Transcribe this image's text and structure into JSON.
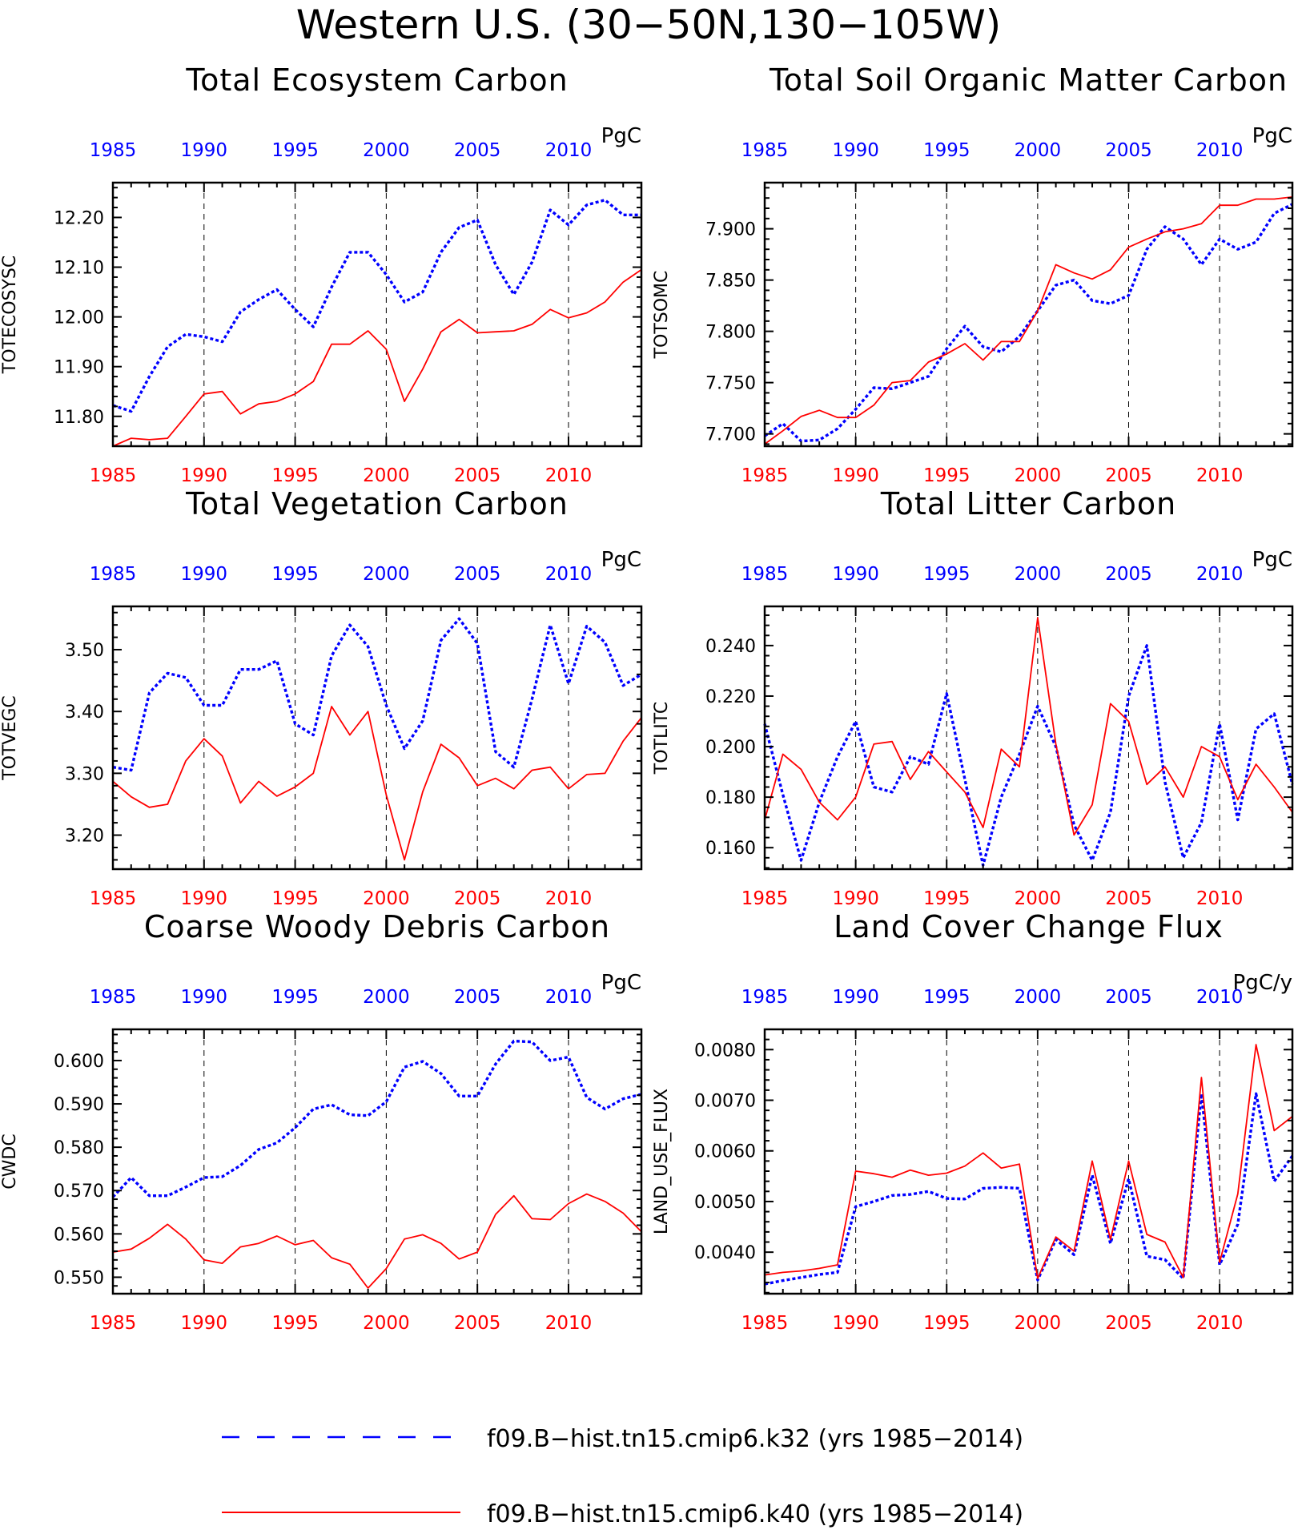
{
  "figure": {
    "title": "Western U.S. (30−50N,130−105W)",
    "legend": [
      {
        "label": "f09.B−hist.tn15.cmip6.k32 (yrs 1985−2014)",
        "color": "#0000ff",
        "style": "dashed"
      },
      {
        "label": "f09.B−hist.tn15.cmip6.k40 (yrs 1985−2014)",
        "color": "#ff0000",
        "style": "solid"
      }
    ]
  },
  "chart_data": [
    {
      "type": "line",
      "title": "Total Ecosystem Carbon",
      "ylabel": "TOTECOSYSC",
      "units": "PgC",
      "xlim": [
        1985,
        2014
      ],
      "ylim": [
        11.74,
        12.27
      ],
      "yticks": [
        11.8,
        11.9,
        12.0,
        12.1,
        12.2
      ],
      "ytick_labels": [
        "11.80",
        "11.90",
        "12.00",
        "12.10",
        "12.20"
      ],
      "xticks": [
        1985,
        1990,
        1995,
        2000,
        2005,
        2010
      ],
      "xtick_labels": [
        "1985",
        "1990",
        "1995",
        "2000",
        "2005",
        "2010"
      ],
      "grid": "vertical dashed at tick years",
      "x": [
        1985,
        1986,
        1987,
        1988,
        1989,
        1990,
        1991,
        1992,
        1993,
        1994,
        1995,
        1996,
        1997,
        1998,
        1999,
        2000,
        2001,
        2002,
        2003,
        2004,
        2005,
        2006,
        2007,
        2008,
        2009,
        2010,
        2011,
        2012,
        2013,
        2014
      ],
      "series": [
        {
          "color": "#0000ff",
          "dash": "dotted",
          "values": [
            11.822,
            11.81,
            11.88,
            11.94,
            11.965,
            11.96,
            11.95,
            12.01,
            12.035,
            12.055,
            12.015,
            11.98,
            12.06,
            12.13,
            12.13,
            12.085,
            12.03,
            12.05,
            12.13,
            12.18,
            12.195,
            12.105,
            12.045,
            12.11,
            12.215,
            12.185,
            12.225,
            12.235,
            12.205,
            12.205
          ]
        },
        {
          "color": "#ff0000",
          "dash": "solid",
          "values": [
            11.74,
            11.756,
            11.753,
            11.756,
            11.8,
            11.845,
            11.85,
            11.805,
            11.825,
            11.83,
            11.845,
            11.87,
            11.945,
            11.945,
            11.972,
            11.935,
            11.83,
            11.895,
            11.97,
            11.995,
            11.968,
            11.97,
            11.972,
            11.985,
            12.015,
            11.998,
            12.008,
            12.03,
            12.07,
            12.095
          ]
        }
      ]
    },
    {
      "type": "line",
      "title": "Total Soil Organic Matter Carbon",
      "ylabel": "TOTSOMC",
      "units": "PgC",
      "xlim": [
        1985,
        2014
      ],
      "ylim": [
        7.688,
        7.945
      ],
      "yticks": [
        7.7,
        7.75,
        7.8,
        7.85,
        7.9
      ],
      "ytick_labels": [
        "7.700",
        "7.750",
        "7.800",
        "7.850",
        "7.900"
      ],
      "xticks": [
        1985,
        1990,
        1995,
        2000,
        2005,
        2010
      ],
      "xtick_labels": [
        "1985",
        "1990",
        "1995",
        "2000",
        "2005",
        "2010"
      ],
      "grid": "vertical dashed at tick years",
      "x": [
        1985,
        1986,
        1987,
        1988,
        1989,
        1990,
        1991,
        1992,
        1993,
        1994,
        1995,
        1996,
        1997,
        1998,
        1999,
        2000,
        2001,
        2002,
        2003,
        2004,
        2005,
        2006,
        2007,
        2008,
        2009,
        2010,
        2011,
        2012,
        2013,
        2014
      ],
      "series": [
        {
          "color": "#0000ff",
          "dash": "dotted",
          "values": [
            7.698,
            7.71,
            7.693,
            7.694,
            7.705,
            7.724,
            7.745,
            7.744,
            7.75,
            7.756,
            7.783,
            7.805,
            7.785,
            7.78,
            7.795,
            7.82,
            7.845,
            7.85,
            7.83,
            7.827,
            7.835,
            7.88,
            7.902,
            7.89,
            7.865,
            7.89,
            7.88,
            7.887,
            7.915,
            7.924
          ]
        },
        {
          "color": "#ff0000",
          "dash": "solid",
          "values": [
            7.69,
            7.703,
            7.717,
            7.723,
            7.716,
            7.716,
            7.728,
            7.75,
            7.752,
            7.77,
            7.778,
            7.788,
            7.772,
            7.79,
            7.79,
            7.82,
            7.865,
            7.857,
            7.851,
            7.86,
            7.882,
            7.89,
            7.897,
            7.9,
            7.905,
            7.923,
            7.923,
            7.929,
            7.929,
            7.931
          ]
        }
      ]
    },
    {
      "type": "line",
      "title": "Total Vegetation Carbon",
      "ylabel": "TOTVEGC",
      "units": "PgC",
      "xlim": [
        1985,
        2014
      ],
      "ylim": [
        3.145,
        3.57
      ],
      "yticks": [
        3.2,
        3.3,
        3.4,
        3.5
      ],
      "ytick_labels": [
        "3.20",
        "3.30",
        "3.40",
        "3.50"
      ],
      "xticks": [
        1985,
        1990,
        1995,
        2000,
        2005,
        2010
      ],
      "xtick_labels": [
        "1985",
        "1990",
        "1995",
        "2000",
        "2005",
        "2010"
      ],
      "grid": "vertical dashed at tick years",
      "x": [
        1985,
        1986,
        1987,
        1988,
        1989,
        1990,
        1991,
        1992,
        1993,
        1994,
        1995,
        1996,
        1997,
        1998,
        1999,
        2000,
        2001,
        2002,
        2003,
        2004,
        2005,
        2006,
        2007,
        2008,
        2009,
        2010,
        2011,
        2012,
        2013,
        2014
      ],
      "series": [
        {
          "color": "#0000ff",
          "dash": "dotted",
          "values": [
            3.31,
            3.305,
            3.43,
            3.462,
            3.455,
            3.41,
            3.41,
            3.468,
            3.468,
            3.482,
            3.38,
            3.362,
            3.49,
            3.54,
            3.505,
            3.41,
            3.34,
            3.385,
            3.515,
            3.55,
            3.51,
            3.335,
            3.31,
            3.42,
            3.54,
            3.445,
            3.538,
            3.512,
            3.442,
            3.46
          ]
        },
        {
          "color": "#ff0000",
          "dash": "solid",
          "values": [
            3.287,
            3.262,
            3.245,
            3.25,
            3.32,
            3.356,
            3.328,
            3.252,
            3.287,
            3.263,
            3.278,
            3.3,
            3.408,
            3.362,
            3.4,
            3.265,
            3.16,
            3.27,
            3.347,
            3.325,
            3.28,
            3.292,
            3.275,
            3.305,
            3.31,
            3.275,
            3.298,
            3.3,
            3.352,
            3.39
          ]
        }
      ]
    },
    {
      "type": "line",
      "title": "Total Litter Carbon",
      "ylabel": "TOTLITC",
      "units": "PgC",
      "xlim": [
        1985,
        2014
      ],
      "ylim": [
        0.1515,
        0.2555
      ],
      "yticks": [
        0.16,
        0.18,
        0.2,
        0.22,
        0.24
      ],
      "ytick_labels": [
        "0.160",
        "0.180",
        "0.200",
        "0.220",
        "0.240"
      ],
      "xticks": [
        1985,
        1990,
        1995,
        2000,
        2005,
        2010
      ],
      "xtick_labels": [
        "1985",
        "1990",
        "1995",
        "2000",
        "2005",
        "2010"
      ],
      "grid": "vertical dashed at tick years",
      "x": [
        1985,
        1986,
        1987,
        1988,
        1989,
        1990,
        1991,
        1992,
        1993,
        1994,
        1995,
        1996,
        1997,
        1998,
        1999,
        2000,
        2001,
        2002,
        2003,
        2004,
        2005,
        2006,
        2007,
        2008,
        2009,
        2010,
        2011,
        2012,
        2013,
        2014
      ],
      "series": [
        {
          "color": "#0000ff",
          "dash": "dotted",
          "values": [
            0.209,
            0.181,
            0.155,
            0.178,
            0.196,
            0.21,
            0.184,
            0.182,
            0.196,
            0.193,
            0.221,
            0.187,
            0.153,
            0.18,
            0.197,
            0.216,
            0.2,
            0.169,
            0.155,
            0.174,
            0.22,
            0.24,
            0.186,
            0.156,
            0.17,
            0.209,
            0.171,
            0.207,
            0.213,
            0.185
          ]
        },
        {
          "color": "#ff0000",
          "dash": "solid",
          "values": [
            0.171,
            0.197,
            0.191,
            0.178,
            0.171,
            0.18,
            0.201,
            0.202,
            0.187,
            0.198,
            0.19,
            0.182,
            0.168,
            0.199,
            0.192,
            0.251,
            0.201,
            0.165,
            0.177,
            0.217,
            0.21,
            0.185,
            0.192,
            0.18,
            0.2,
            0.196,
            0.179,
            0.193,
            0.184,
            0.174
          ]
        }
      ]
    },
    {
      "type": "line",
      "title": "Coarse Woody Debris Carbon",
      "ylabel": "CWDC",
      "units": "PgC",
      "xlim": [
        1985,
        2014
      ],
      "ylim": [
        0.5462,
        0.6072
      ],
      "yticks": [
        0.55,
        0.56,
        0.57,
        0.58,
        0.59,
        0.6
      ],
      "ytick_labels": [
        "0.550",
        "0.560",
        "0.570",
        "0.580",
        "0.590",
        "0.600"
      ],
      "xticks": [
        1985,
        1990,
        1995,
        2000,
        2005,
        2010
      ],
      "xtick_labels": [
        "1985",
        "1990",
        "1995",
        "2000",
        "2005",
        "2010"
      ],
      "grid": "vertical dashed at tick years",
      "x": [
        1985,
        1986,
        1987,
        1988,
        1989,
        1990,
        1991,
        1992,
        1993,
        1994,
        1995,
        1996,
        1997,
        1998,
        1999,
        2000,
        2001,
        2002,
        2003,
        2004,
        2005,
        2006,
        2007,
        2008,
        2009,
        2010,
        2011,
        2012,
        2013,
        2014
      ],
      "series": [
        {
          "color": "#0000ff",
          "dash": "dotted",
          "values": [
            0.5685,
            0.573,
            0.5688,
            0.5688,
            0.5708,
            0.573,
            0.5732,
            0.5758,
            0.5795,
            0.581,
            0.5845,
            0.5888,
            0.5898,
            0.5875,
            0.5873,
            0.5905,
            0.5985,
            0.5998,
            0.597,
            0.5918,
            0.5918,
            0.5992,
            0.6045,
            0.6043,
            0.6,
            0.6008,
            0.5915,
            0.5888,
            0.5912,
            0.5922
          ]
        },
        {
          "color": "#ff0000",
          "dash": "solid",
          "values": [
            0.5558,
            0.5565,
            0.559,
            0.5622,
            0.5588,
            0.554,
            0.5532,
            0.557,
            0.5578,
            0.5595,
            0.5575,
            0.5585,
            0.5545,
            0.553,
            0.5475,
            0.552,
            0.5588,
            0.5598,
            0.5578,
            0.5542,
            0.5558,
            0.5645,
            0.5688,
            0.5635,
            0.5633,
            0.567,
            0.5692,
            0.5675,
            0.5648,
            0.5605
          ]
        }
      ]
    },
    {
      "type": "line",
      "title": "Land Cover Change Flux",
      "ylabel": "LAND_USE_FLUX",
      "units": "PgC/y",
      "xlim": [
        1985,
        2014
      ],
      "ylim": [
        0.00318,
        0.0084
      ],
      "yticks": [
        0.004,
        0.005,
        0.006,
        0.007,
        0.008
      ],
      "ytick_labels": [
        "0.0040",
        "0.0050",
        "0.0060",
        "0.0070",
        "0.0080"
      ],
      "xticks": [
        1985,
        1990,
        1995,
        2000,
        2005,
        2010
      ],
      "xtick_labels": [
        "1985",
        "1990",
        "1995",
        "2000",
        "2005",
        "2010"
      ],
      "grid": "vertical dashed at tick years",
      "x": [
        1985,
        1986,
        1987,
        1988,
        1989,
        1990,
        1991,
        1992,
        1993,
        1994,
        1995,
        1996,
        1997,
        1998,
        1999,
        2000,
        2001,
        2002,
        2003,
        2004,
        2005,
        2006,
        2007,
        2008,
        2009,
        2010,
        2011,
        2012,
        2013,
        2014
      ],
      "series": [
        {
          "color": "#0000ff",
          "dash": "dotted",
          "values": [
            0.00337,
            0.00344,
            0.0035,
            0.00356,
            0.0036,
            0.0049,
            0.005,
            0.00512,
            0.00514,
            0.0052,
            0.00506,
            0.00505,
            0.00526,
            0.00528,
            0.00526,
            0.00345,
            0.00425,
            0.00395,
            0.00552,
            0.00417,
            0.00545,
            0.00392,
            0.00385,
            0.00348,
            0.00713,
            0.00375,
            0.00455,
            0.00713,
            0.0054,
            0.0059
          ]
        },
        {
          "color": "#ff0000",
          "dash": "solid",
          "values": [
            0.00355,
            0.0036,
            0.00363,
            0.00368,
            0.00375,
            0.0056,
            0.00555,
            0.00548,
            0.00562,
            0.00552,
            0.00556,
            0.0057,
            0.00596,
            0.00566,
            0.00574,
            0.00348,
            0.0043,
            0.00402,
            0.0058,
            0.00425,
            0.0058,
            0.00435,
            0.0042,
            0.0035,
            0.00745,
            0.0038,
            0.00515,
            0.0081,
            0.0064,
            0.00668
          ]
        }
      ]
    }
  ]
}
